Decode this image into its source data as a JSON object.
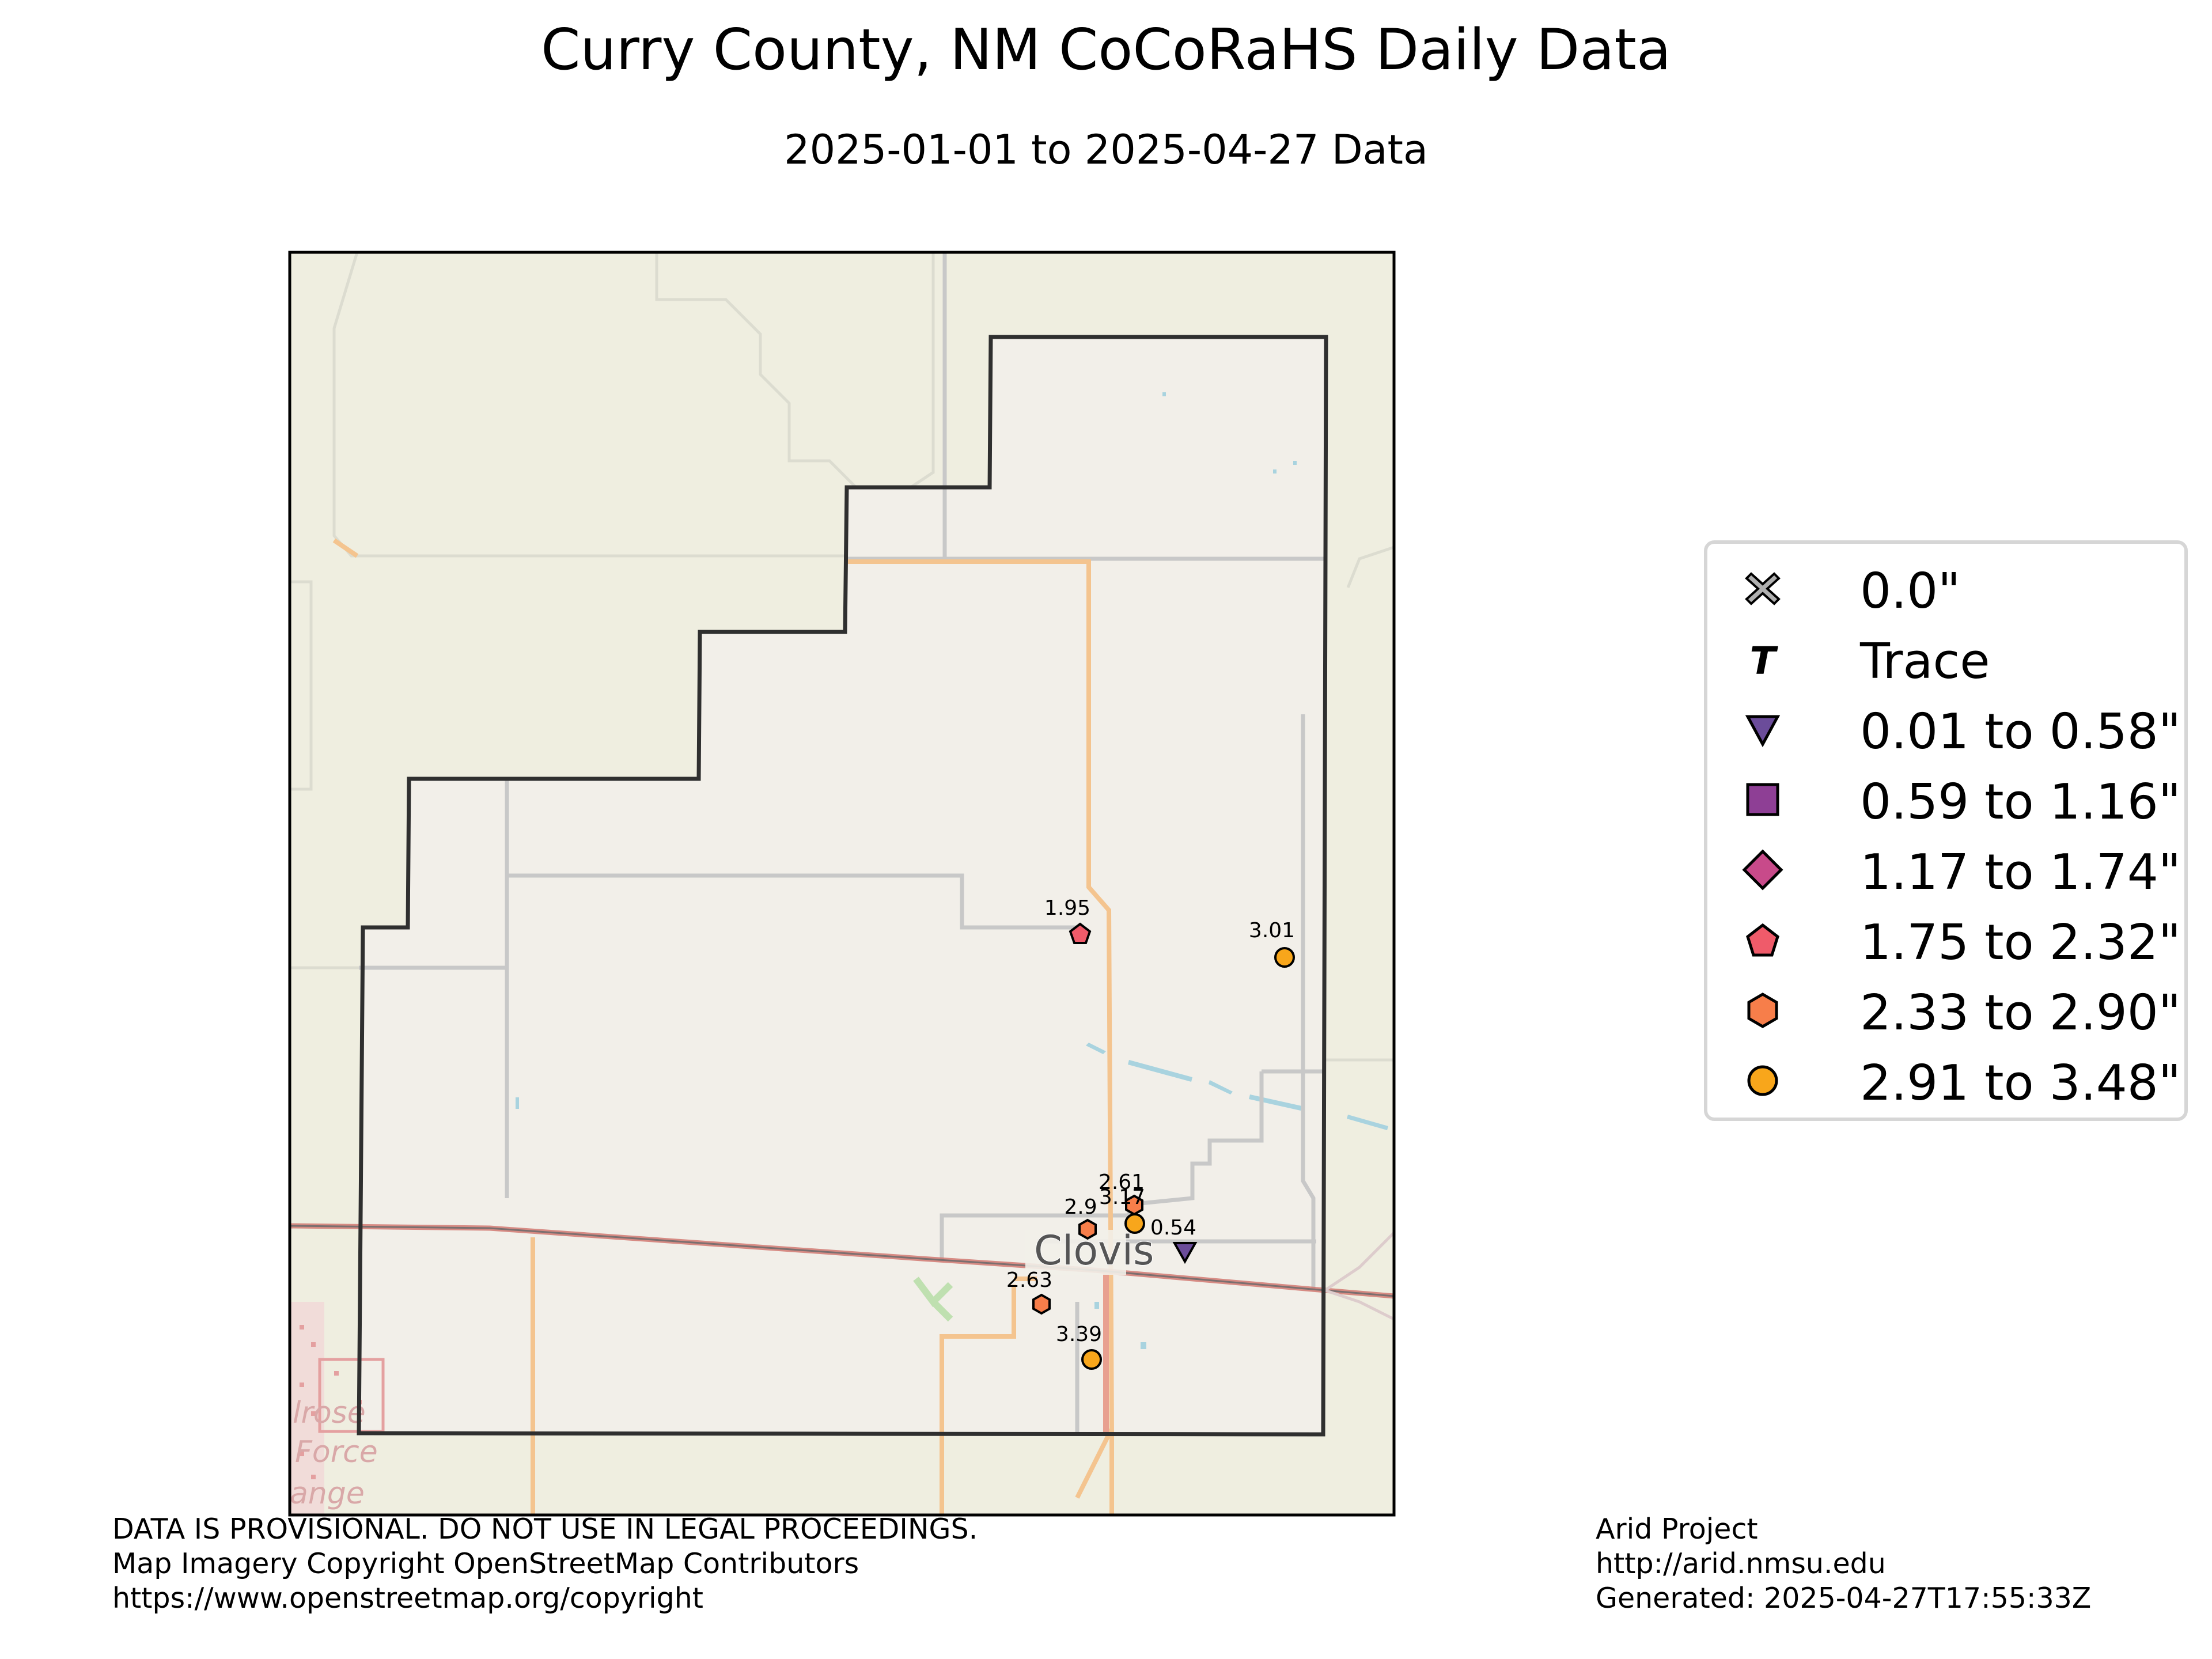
{
  "title": "Curry County, NM CoCoRaHS Daily Data",
  "subtitle": "2025-01-01 to 2025-04-27 Data",
  "map": {
    "place_label": "Clovis",
    "basemap_fragments": [
      "lrose",
      "Force",
      "ange"
    ],
    "colors": {
      "land": "#efeee0",
      "county_fill": "#f2efe9",
      "roads_major": "#f4c48f",
      "roads_minor": "#c8c8c8",
      "water": "#a9d3df",
      "railway": "#d0726a"
    }
  },
  "stations": [
    {
      "value": "1.95",
      "class": "1.75 to 2.32\""
    },
    {
      "value": "3.01",
      "class": "2.91 to 3.48\""
    },
    {
      "value": "2.61",
      "class": "2.33 to 2.90\""
    },
    {
      "value": "3.17",
      "class": "2.91 to 3.48\""
    },
    {
      "value": "2.9",
      "class": "2.33 to 2.90\""
    },
    {
      "value": "0.54",
      "class": "0.01 to 0.58\""
    },
    {
      "value": "2.63",
      "class": "2.33 to 2.90\""
    },
    {
      "value": "3.39",
      "class": "2.91 to 3.48\""
    }
  ],
  "legend": {
    "items": [
      {
        "label": "0.0\"",
        "icon": "x-icon",
        "color": "#b0b0b0"
      },
      {
        "label": "Trace",
        "icon": "t-icon",
        "color": "#000000"
      },
      {
        "label": "0.01 to 0.58\"",
        "icon": "triangle-down-icon",
        "color": "#6b4c9a"
      },
      {
        "label": "0.59 to 1.16\"",
        "icon": "square-icon",
        "color": "#8e3f95"
      },
      {
        "label": "1.17 to 1.74\"",
        "icon": "diamond-icon",
        "color": "#c84a8a"
      },
      {
        "label": "1.75 to 2.32\"",
        "icon": "pentagon-icon",
        "color": "#ef5b6a"
      },
      {
        "label": "2.33 to 2.90\"",
        "icon": "hexagon-icon",
        "color": "#f77e4a"
      },
      {
        "label": "2.91 to 3.48\"",
        "icon": "circle-icon",
        "color": "#f8a61b"
      }
    ]
  },
  "footer": {
    "left": [
      "DATA IS PROVISIONAL. DO NOT USE IN LEGAL PROCEEDINGS.",
      "Map Imagery Copyright OpenStreetMap Contributors",
      "https://www.openstreetmap.org/copyright"
    ],
    "right": [
      "Arid Project",
      "http://arid.nmsu.edu",
      "Generated: 2025-04-27T17:55:33Z"
    ]
  }
}
